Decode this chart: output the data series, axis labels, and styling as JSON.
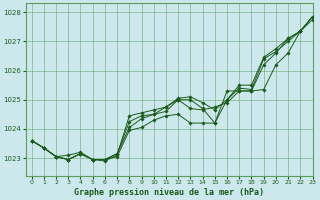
{
  "title": "Graphe pression niveau de la mer (hPa)",
  "xlim": [
    -0.5,
    23
  ],
  "ylim": [
    1022.4,
    1028.3
  ],
  "yticks": [
    1023,
    1024,
    1025,
    1026,
    1027,
    1028
  ],
  "xticks": [
    0,
    1,
    2,
    3,
    4,
    5,
    6,
    7,
    8,
    9,
    10,
    11,
    12,
    13,
    14,
    15,
    16,
    17,
    18,
    19,
    20,
    21,
    22,
    23
  ],
  "bg_color": "#cce8ec",
  "grid_color": "#5aa05a",
  "line_color": "#1a5c1a",
  "series": [
    [
      1023.6,
      1023.35,
      1023.05,
      1022.95,
      1023.15,
      1022.95,
      1022.95,
      1023.05,
      1023.95,
      1024.05,
      1024.3,
      1024.45,
      1024.5,
      1024.2,
      1024.2,
      1024.2,
      1025.3,
      1025.3,
      1025.3,
      1026.2,
      1026.6,
      1027.1,
      1027.35,
      1027.85
    ],
    [
      1023.6,
      1023.35,
      1023.05,
      1022.95,
      1023.15,
      1022.95,
      1022.95,
      1023.15,
      1024.05,
      1024.35,
      1024.5,
      1024.75,
      1025.0,
      1024.7,
      1024.65,
      1024.75,
      1024.9,
      1025.3,
      1025.3,
      1025.35,
      1026.2,
      1026.6,
      1027.35,
      1027.85
    ],
    [
      1023.6,
      1023.35,
      1023.05,
      1022.95,
      1023.15,
      1022.95,
      1022.95,
      1023.15,
      1024.25,
      1024.45,
      1024.5,
      1024.6,
      1025.0,
      1025.0,
      1024.7,
      1024.2,
      1025.0,
      1025.4,
      1025.35,
      1026.4,
      1026.65,
      1027.0,
      1027.35,
      1027.75
    ],
    [
      1023.6,
      1023.35,
      1023.05,
      1023.1,
      1023.2,
      1022.95,
      1022.9,
      1023.1,
      1024.45,
      1024.55,
      1024.65,
      1024.75,
      1025.05,
      1025.1,
      1024.9,
      1024.65,
      1025.0,
      1025.5,
      1025.5,
      1026.45,
      1026.75,
      1027.1,
      1027.35,
      1027.85
    ]
  ]
}
